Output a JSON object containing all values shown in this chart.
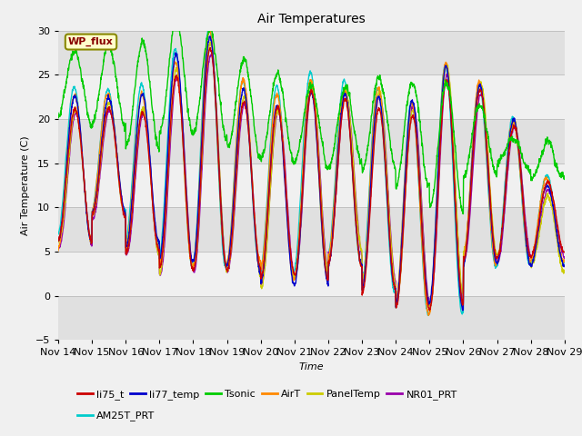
{
  "title": "Air Temperatures",
  "xlabel": "Time",
  "ylabel": "Air Temperature (C)",
  "xlim": [
    0,
    15
  ],
  "ylim": [
    -5,
    30
  ],
  "yticks": [
    -5,
    0,
    5,
    10,
    15,
    20,
    25,
    30
  ],
  "xtick_labels": [
    "Nov 14",
    "Nov 15",
    "Nov 16",
    "Nov 17",
    "Nov 18",
    "Nov 19",
    "Nov 20",
    "Nov 21",
    "Nov 22",
    "Nov 23",
    "Nov 24",
    "Nov 25",
    "Nov 26",
    "Nov 27",
    "Nov 28",
    "Nov 29"
  ],
  "grid_color": "#cccccc",
  "bg_color": "#e8e8e8",
  "plot_bg": "#f0f0f0",
  "band_colors": [
    "#e8e8e8",
    "#d8d8d8"
  ],
  "legend_items": [
    {
      "label": "li75_t",
      "color": "#cc0000"
    },
    {
      "label": "li77_temp",
      "color": "#0000cc"
    },
    {
      "label": "Tsonic",
      "color": "#00cc00"
    },
    {
      "label": "AirT",
      "color": "#ff8800"
    },
    {
      "label": "PanelTemp",
      "color": "#cccc00"
    },
    {
      "label": "NR01_PRT",
      "color": "#9900aa"
    },
    {
      "label": "AM25T_PRT",
      "color": "#00cccc"
    }
  ],
  "wp_flux_box": {
    "text": "WP_flux",
    "text_color": "#880000",
    "bg_color": "#ffffcc",
    "edge_color": "#888800"
  },
  "day_maxes": [
    21,
    21,
    21,
    25,
    28,
    22,
    21,
    23,
    22,
    22,
    21,
    25,
    23,
    19,
    12,
    12
  ],
  "day_mins": [
    6,
    9,
    5,
    3,
    3,
    3,
    2,
    2,
    4,
    1,
    -1,
    -1,
    4,
    4,
    4,
    4
  ],
  "tsonic_maxes": [
    25,
    26,
    27,
    29,
    29,
    26,
    26,
    25,
    25,
    25,
    25,
    25,
    23,
    19,
    19,
    17
  ],
  "tsonic_mins": [
    17,
    17,
    15,
    17,
    17,
    16,
    16,
    16,
    16,
    15,
    13,
    11,
    15,
    16,
    15,
    15
  ]
}
